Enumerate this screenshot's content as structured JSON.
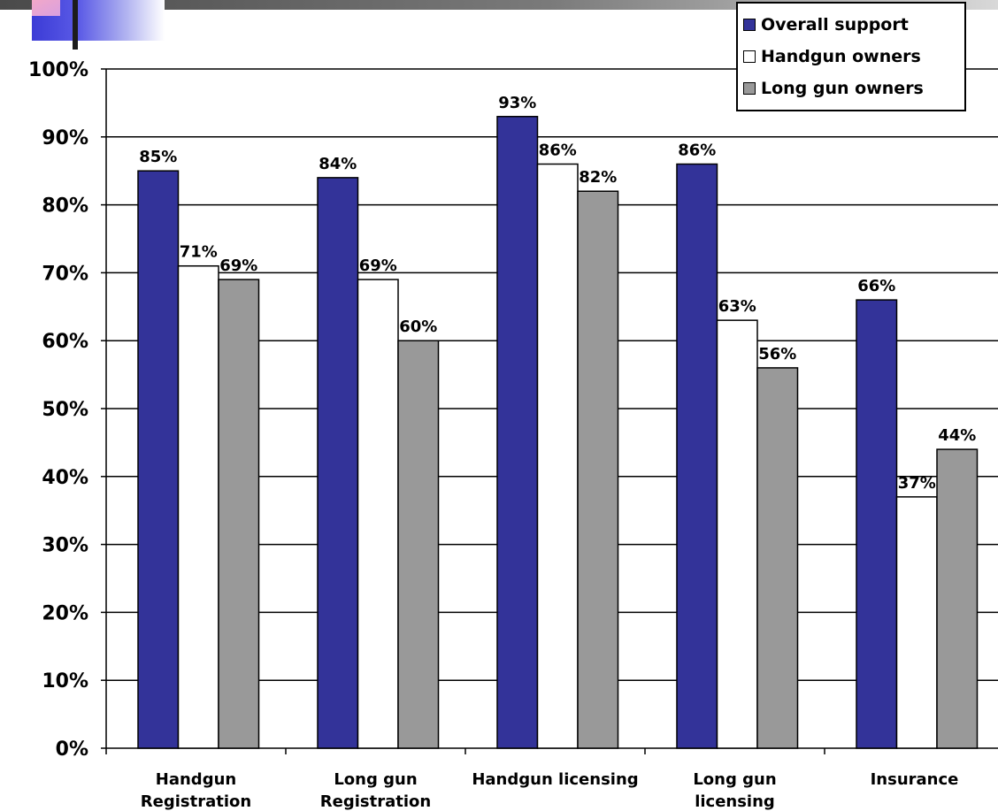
{
  "chart_data": {
    "type": "bar",
    "categories": [
      [
        "Handgun",
        "Registration"
      ],
      [
        "Long gun",
        "Registration"
      ],
      [
        "Handgun licensing"
      ],
      [
        "Long gun",
        "licensing"
      ],
      [
        "Insurance"
      ]
    ],
    "series": [
      {
        "name": "Overall support",
        "color": "#333399",
        "values": [
          85,
          84,
          93,
          86,
          66
        ],
        "labels": [
          "85%",
          "84%",
          "93%",
          "86%",
          "66%"
        ]
      },
      {
        "name": "Handgun owners",
        "color": "#ffffff",
        "values": [
          71,
          69,
          86,
          63,
          37
        ],
        "labels": [
          "71%",
          "69%",
          "86%",
          "63%",
          "37%"
        ]
      },
      {
        "name": "Long gun owners",
        "color": "#999999",
        "values": [
          69,
          60,
          82,
          56,
          44
        ],
        "labels": [
          "69%",
          "60%",
          "82%",
          "56%",
          "44%"
        ]
      }
    ],
    "y_ticks": [
      "0%",
      "10%",
      "20%",
      "30%",
      "40%",
      "50%",
      "60%",
      "70%",
      "80%",
      "90%",
      "100%"
    ],
    "ylim": [
      0,
      100
    ],
    "grid": true,
    "legend_position": "top-right"
  }
}
